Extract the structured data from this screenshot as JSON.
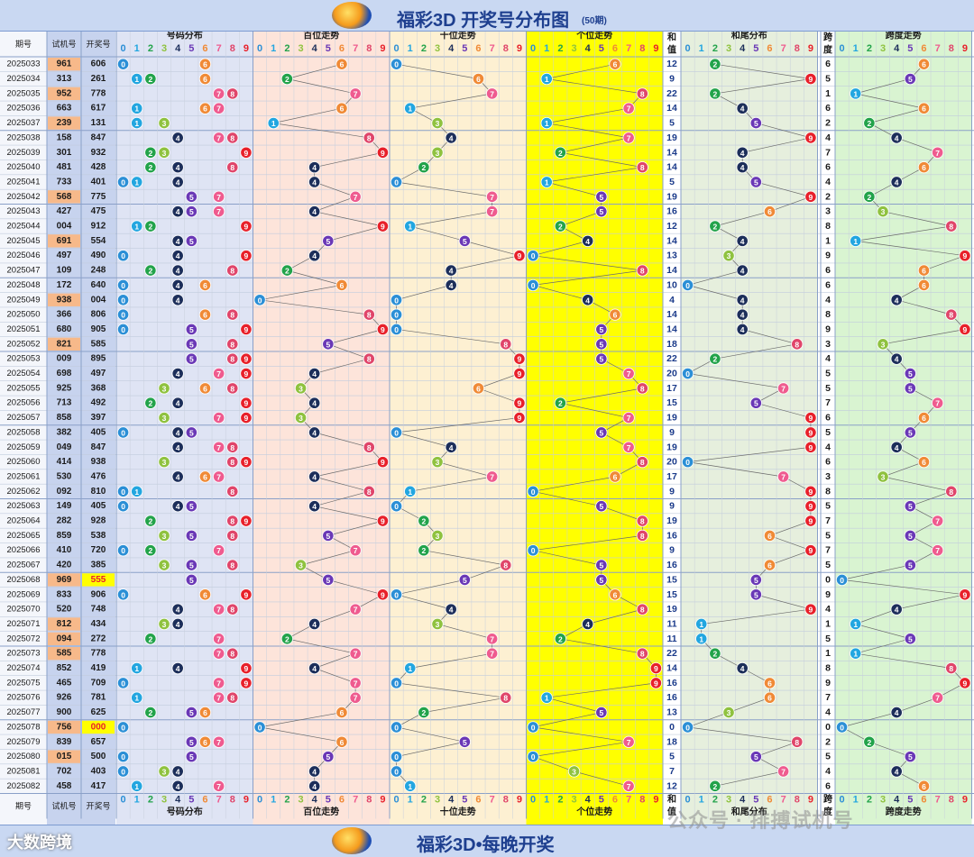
{
  "header": {
    "title": "福彩3D 开奖号分布图",
    "subtitle": "(50期)"
  },
  "footer": {
    "title": "福彩3D•每晚开奖",
    "brand": "大数跨境",
    "watermark": "公众号 · 排搏试机号"
  },
  "colors": {
    "digit": [
      "#2b8fd6",
      "#22a6e0",
      "#22a34a",
      "#8fc23f",
      "#1c2e5a",
      "#6a38b6",
      "#f08a36",
      "#ef5b8f",
      "#e0456a",
      "#e8202a"
    ],
    "panel_dist": "#dfe4f4",
    "panel_hund": "#fde4da",
    "panel_tens": "#fdf0d2",
    "panel_ones": "#ffff00",
    "panel_sumtail": "#e6efdd",
    "panel_span": "#d9f4d1",
    "col_test": "#c7d3ee",
    "col_win": "#c7d3ee",
    "accent_hot": "#f7b98a"
  },
  "chart_data": {
    "type": "table",
    "title": "福彩3D 开奖号分布图",
    "column_headers": {
      "issue": "期号",
      "test": "试机号",
      "win": "开奖号",
      "dist": "号码分布",
      "hund": "百位走势",
      "tens": "十位走势",
      "ones": "个位走势",
      "sum": "和值",
      "sumtail": "和尾分布",
      "span": "跨度",
      "spantrend": "跨度走势"
    },
    "digits": [
      "0",
      "1",
      "2",
      "3",
      "4",
      "5",
      "6",
      "7",
      "8",
      "9"
    ],
    "rows": [
      {
        "issue": "2025033",
        "test": "961",
        "win": "606"
      },
      {
        "issue": "2025034",
        "test": "313",
        "win": "261"
      },
      {
        "issue": "2025035",
        "test": "952",
        "win": "778"
      },
      {
        "issue": "2025036",
        "test": "663",
        "win": "617"
      },
      {
        "issue": "2025037",
        "test": "239",
        "win": "131"
      },
      {
        "issue": "2025038",
        "test": "158",
        "win": "847"
      },
      {
        "issue": "2025039",
        "test": "301",
        "win": "932"
      },
      {
        "issue": "2025040",
        "test": "481",
        "win": "428"
      },
      {
        "issue": "2025041",
        "test": "733",
        "win": "401"
      },
      {
        "issue": "2025042",
        "test": "568",
        "win": "775"
      },
      {
        "issue": "2025043",
        "test": "427",
        "win": "475"
      },
      {
        "issue": "2025044",
        "test": "004",
        "win": "912"
      },
      {
        "issue": "2025045",
        "test": "691",
        "win": "554"
      },
      {
        "issue": "2025046",
        "test": "497",
        "win": "490"
      },
      {
        "issue": "2025047",
        "test": "109",
        "win": "248"
      },
      {
        "issue": "2025048",
        "test": "172",
        "win": "640"
      },
      {
        "issue": "2025049",
        "test": "938",
        "win": "004"
      },
      {
        "issue": "2025050",
        "test": "366",
        "win": "806"
      },
      {
        "issue": "2025051",
        "test": "680",
        "win": "905"
      },
      {
        "issue": "2025052",
        "test": "821",
        "win": "585"
      },
      {
        "issue": "2025053",
        "test": "009",
        "win": "895"
      },
      {
        "issue": "2025054",
        "test": "698",
        "win": "497"
      },
      {
        "issue": "2025055",
        "test": "925",
        "win": "368"
      },
      {
        "issue": "2025056",
        "test": "713",
        "win": "492"
      },
      {
        "issue": "2025057",
        "test": "858",
        "win": "397"
      },
      {
        "issue": "2025058",
        "test": "382",
        "win": "405"
      },
      {
        "issue": "2025059",
        "test": "049",
        "win": "847"
      },
      {
        "issue": "2025060",
        "test": "414",
        "win": "938"
      },
      {
        "issue": "2025061",
        "test": "530",
        "win": "476"
      },
      {
        "issue": "2025062",
        "test": "092",
        "win": "810"
      },
      {
        "issue": "2025063",
        "test": "149",
        "win": "405"
      },
      {
        "issue": "2025064",
        "test": "282",
        "win": "928"
      },
      {
        "issue": "2025065",
        "test": "859",
        "win": "538"
      },
      {
        "issue": "2025066",
        "test": "410",
        "win": "720"
      },
      {
        "issue": "2025067",
        "test": "420",
        "win": "385"
      },
      {
        "issue": "2025068",
        "test": "969",
        "win": "555"
      },
      {
        "issue": "2025069",
        "test": "833",
        "win": "906"
      },
      {
        "issue": "2025070",
        "test": "520",
        "win": "748"
      },
      {
        "issue": "2025071",
        "test": "812",
        "win": "434"
      },
      {
        "issue": "2025072",
        "test": "094",
        "win": "272"
      },
      {
        "issue": "2025073",
        "test": "585",
        "win": "778"
      },
      {
        "issue": "2025074",
        "test": "852",
        "win": "419"
      },
      {
        "issue": "2025075",
        "test": "465",
        "win": "709"
      },
      {
        "issue": "2025076",
        "test": "926",
        "win": "781"
      },
      {
        "issue": "2025077",
        "test": "900",
        "win": "625"
      },
      {
        "issue": "2025078",
        "test": "756",
        "win": "000"
      },
      {
        "issue": "2025079",
        "test": "839",
        "win": "657"
      },
      {
        "issue": "2025080",
        "test": "015",
        "win": "500"
      },
      {
        "issue": "2025081",
        "test": "702",
        "win": "403"
      },
      {
        "issue": "2025082",
        "test": "458",
        "win": "417"
      }
    ]
  }
}
